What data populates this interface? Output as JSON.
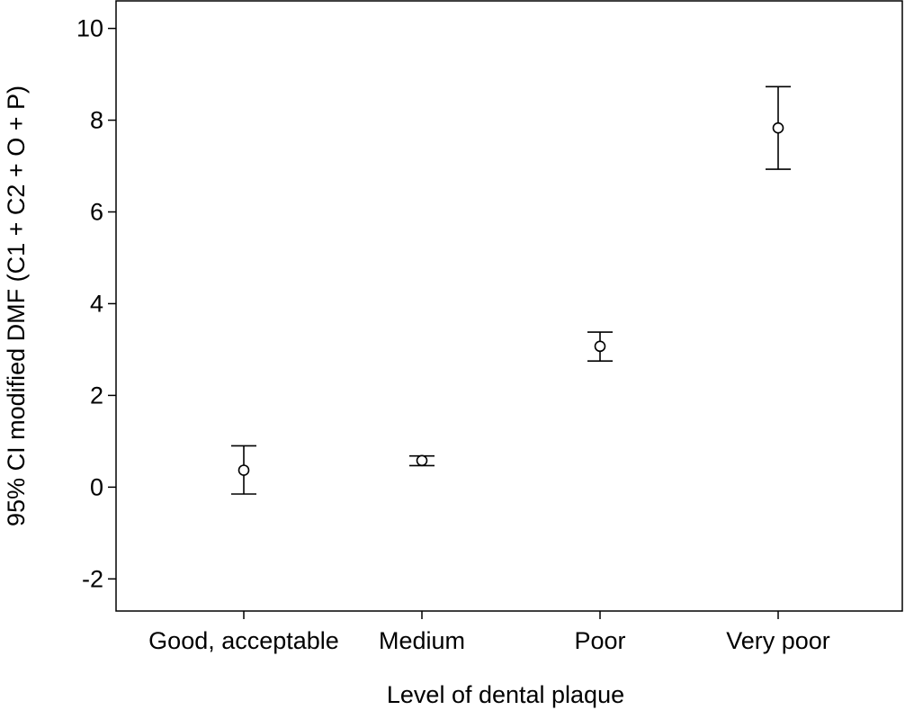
{
  "chart_data": {
    "type": "scatter",
    "xlabel": "Level of dental plaque",
    "ylabel": "95% CI modified DMF (C1 + C2 + O + P)",
    "categories": [
      "Good, acceptable",
      "Medium",
      "Poor",
      "Very poor"
    ],
    "means": [
      0.37,
      0.58,
      3.07,
      7.83
    ],
    "ci_lower": [
      -0.15,
      0.47,
      2.75,
      6.93
    ],
    "ci_upper": [
      0.9,
      0.68,
      3.38,
      8.73
    ],
    "ylim": [
      -2.7,
      10.6
    ],
    "yticks": [
      -2,
      0,
      2,
      4,
      6,
      8,
      10
    ],
    "ytick_labels": [
      "-2",
      "0",
      "2",
      "4",
      "6",
      "8",
      "10"
    ],
    "grid": false,
    "colors": {
      "marker": "#000000",
      "axis": "#000000"
    }
  }
}
